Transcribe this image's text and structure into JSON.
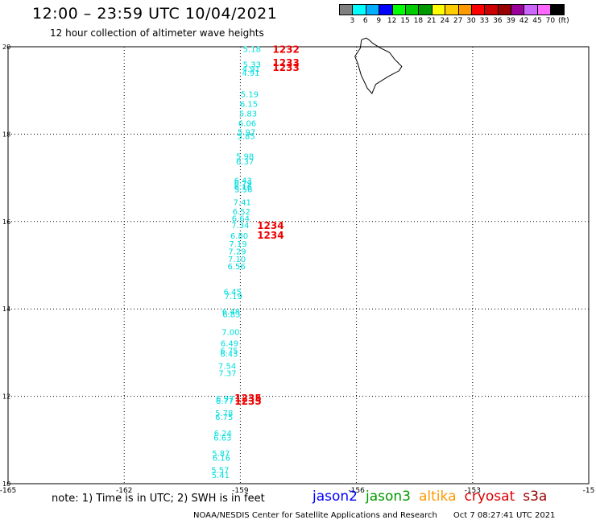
{
  "title": "12:00 – 23:59 UTC 10/04/2021",
  "subtitle": "12 hour collection of altimeter wave heights",
  "legend": {
    "colors": [
      "#808080",
      "#00ffff",
      "#00b0ff",
      "#0000ff",
      "#00ff00",
      "#00cc00",
      "#009900",
      "#ffff00",
      "#ffcc00",
      "#ff9900",
      "#ff0000",
      "#cc0000",
      "#990000",
      "#990099",
      "#cc66ff",
      "#ff66ff",
      "#000000"
    ],
    "labels": [
      "3",
      "6",
      "9",
      "12",
      "15",
      "18",
      "21",
      "24",
      "27",
      "30",
      "33",
      "36",
      "39",
      "42",
      "45",
      "70",
      "(ft)"
    ]
  },
  "map": {
    "lon_range": [
      -165,
      -150
    ],
    "lat_range": [
      10,
      20
    ],
    "x_ticks": [
      {
        "lon": -165,
        "label": "-165"
      },
      {
        "lon": -162,
        "label": "-162"
      },
      {
        "lon": -159,
        "label": "-159"
      },
      {
        "lon": -156,
        "label": "-156"
      },
      {
        "lon": -153,
        "label": "-153"
      },
      {
        "lon": -150,
        "label": "-15"
      }
    ],
    "y_ticks": [
      {
        "lat": 10,
        "label": "10"
      },
      {
        "lat": 12,
        "label": "12"
      },
      {
        "lat": 14,
        "label": "14"
      },
      {
        "lat": 16,
        "label": "16"
      },
      {
        "lat": 18,
        "label": "18"
      },
      {
        "lat": 20,
        "label": "20"
      }
    ],
    "grid": true,
    "coastline": [
      [
        -155.87,
        20.16
      ],
      [
        -155.75,
        20.2
      ],
      [
        -155.68,
        20.16
      ],
      [
        -155.58,
        20.08
      ],
      [
        -155.4,
        19.98
      ],
      [
        -155.15,
        19.87
      ],
      [
        -155.02,
        19.72
      ],
      [
        -154.83,
        19.55
      ],
      [
        -154.9,
        19.45
      ],
      [
        -155.18,
        19.32
      ],
      [
        -155.5,
        19.14
      ],
      [
        -155.6,
        18.93
      ],
      [
        -155.72,
        19.05
      ],
      [
        -155.88,
        19.35
      ],
      [
        -155.96,
        19.6
      ],
      [
        -156.04,
        19.78
      ],
      [
        -155.9,
        19.97
      ],
      [
        -155.87,
        20.16
      ]
    ],
    "wave_heights": [
      {
        "lon": -158.7,
        "lat": 19.95,
        "value": "5.18",
        "color": "#00dddd"
      },
      {
        "lon": -158.7,
        "lat": 19.6,
        "value": "5.33",
        "color": "#00dddd"
      },
      {
        "lon": -158.72,
        "lat": 19.5,
        "value": "4.91",
        "color": "#00dddd"
      },
      {
        "lon": -158.73,
        "lat": 19.41,
        "value": "4.91",
        "color": "#00dddd"
      },
      {
        "lon": -158.76,
        "lat": 18.92,
        "value": "5.19",
        "color": "#00dddd"
      },
      {
        "lon": -158.78,
        "lat": 18.7,
        "value": "6.15",
        "color": "#00dddd"
      },
      {
        "lon": -158.8,
        "lat": 18.48,
        "value": "5.83",
        "color": "#00dddd"
      },
      {
        "lon": -158.82,
        "lat": 18.26,
        "value": "6.06",
        "color": "#00dddd"
      },
      {
        "lon": -158.84,
        "lat": 18.05,
        "value": "5.97",
        "color": "#00dddd"
      },
      {
        "lon": -158.85,
        "lat": 17.96,
        "value": "5.85",
        "color": "#00dddd"
      },
      {
        "lon": -158.88,
        "lat": 17.5,
        "value": "5.98",
        "color": "#00dddd"
      },
      {
        "lon": -158.88,
        "lat": 17.38,
        "value": "6.37",
        "color": "#00dddd"
      },
      {
        "lon": -158.93,
        "lat": 16.95,
        "value": "6.43",
        "color": "#00dddd"
      },
      {
        "lon": -158.93,
        "lat": 16.88,
        "value": "6.79",
        "color": "#00dddd"
      },
      {
        "lon": -158.93,
        "lat": 16.8,
        "value": "6.16",
        "color": "#00dddd"
      },
      {
        "lon": -158.92,
        "lat": 16.74,
        "value": "5.56",
        "color": "#00dddd"
      },
      {
        "lon": -158.95,
        "lat": 16.45,
        "value": "7.41",
        "color": "#00dddd"
      },
      {
        "lon": -158.97,
        "lat": 16.24,
        "value": "6.52",
        "color": "#00dddd"
      },
      {
        "lon": -158.99,
        "lat": 16.08,
        "value": "6.64",
        "color": "#00dddd"
      },
      {
        "lon": -159.0,
        "lat": 15.92,
        "value": "7.34",
        "color": "#00dddd"
      },
      {
        "lon": -159.03,
        "lat": 15.68,
        "value": "6.80",
        "color": "#00dddd"
      },
      {
        "lon": -159.06,
        "lat": 15.5,
        "value": "7.19",
        "color": "#00dddd"
      },
      {
        "lon": -159.08,
        "lat": 15.32,
        "value": "7.29",
        "color": "#00dddd"
      },
      {
        "lon": -159.09,
        "lat": 15.15,
        "value": "7.10",
        "color": "#00dddd"
      },
      {
        "lon": -159.1,
        "lat": 14.98,
        "value": "6.56",
        "color": "#00dddd"
      },
      {
        "lon": -159.2,
        "lat": 14.4,
        "value": "6.45",
        "color": "#00dddd"
      },
      {
        "lon": -159.18,
        "lat": 14.3,
        "value": "7.19",
        "color": "#00dddd"
      },
      {
        "lon": -159.24,
        "lat": 13.95,
        "value": "6.48",
        "color": "#00dddd"
      },
      {
        "lon": -159.23,
        "lat": 13.88,
        "value": "6.83",
        "color": "#00dddd"
      },
      {
        "lon": -159.25,
        "lat": 13.48,
        "value": "7.00",
        "color": "#00dddd"
      },
      {
        "lon": -159.28,
        "lat": 13.22,
        "value": "6.49",
        "color": "#00dddd"
      },
      {
        "lon": -159.29,
        "lat": 13.05,
        "value": "6.75",
        "color": "#00dddd"
      },
      {
        "lon": -159.29,
        "lat": 12.98,
        "value": "6.43",
        "color": "#00dddd"
      },
      {
        "lon": -159.34,
        "lat": 12.7,
        "value": "7.54",
        "color": "#00dddd"
      },
      {
        "lon": -159.33,
        "lat": 12.54,
        "value": "7.37",
        "color": "#00dddd"
      },
      {
        "lon": -159.4,
        "lat": 11.96,
        "value": "6.97",
        "color": "#00dddd"
      },
      {
        "lon": -159.4,
        "lat": 11.9,
        "value": "6.77",
        "color": "#00dddd"
      },
      {
        "lon": -159.42,
        "lat": 11.62,
        "value": "5.78",
        "color": "#00dddd"
      },
      {
        "lon": -159.42,
        "lat": 11.53,
        "value": "6.75",
        "color": "#00dddd"
      },
      {
        "lon": -159.45,
        "lat": 11.16,
        "value": "6.24",
        "color": "#00dddd"
      },
      {
        "lon": -159.46,
        "lat": 11.06,
        "value": "6.63",
        "color": "#00dddd"
      },
      {
        "lon": -159.5,
        "lat": 10.7,
        "value": "5.87",
        "color": "#00dddd"
      },
      {
        "lon": -159.49,
        "lat": 10.6,
        "value": "6.16",
        "color": "#00dddd"
      },
      {
        "lon": -159.52,
        "lat": 10.32,
        "value": "5.57",
        "color": "#00dddd"
      },
      {
        "lon": -159.51,
        "lat": 10.2,
        "value": "5.41",
        "color": "#00dddd"
      }
    ],
    "pass_times": [
      {
        "lon": -157.82,
        "lat": 19.94,
        "value": "1232",
        "color": "#ee0000"
      },
      {
        "lon": -157.82,
        "lat": 19.63,
        "value": "1233",
        "color": "#ee0000"
      },
      {
        "lon": -157.82,
        "lat": 19.52,
        "value": "1233",
        "color": "#ee0000"
      },
      {
        "lon": -158.22,
        "lat": 15.9,
        "value": "1234",
        "color": "#ee0000"
      },
      {
        "lon": -158.22,
        "lat": 15.68,
        "value": "1234",
        "color": "#ee0000"
      },
      {
        "lon": -158.8,
        "lat": 11.96,
        "value": "1235",
        "color": "#ee0000"
      },
      {
        "lon": -158.8,
        "lat": 11.88,
        "value": "1235",
        "color": "#ee0000"
      }
    ]
  },
  "note": "note: 1) Time is in UTC; 2) SWH is in feet",
  "missions": [
    {
      "name": "jason2",
      "color": "#0000ff"
    },
    {
      "name": "jason3",
      "color": "#009900"
    },
    {
      "name": "altika",
      "color": "#ff9900"
    },
    {
      "name": "cryosat",
      "color": "#dd0000"
    },
    {
      "name": "s3a",
      "color": "#990000"
    }
  ],
  "footer": {
    "credit": "NOAA/NESDIS Center for Satellite Applications and Research",
    "timestamp": "Oct  7 08:27:41 UTC 2021"
  }
}
